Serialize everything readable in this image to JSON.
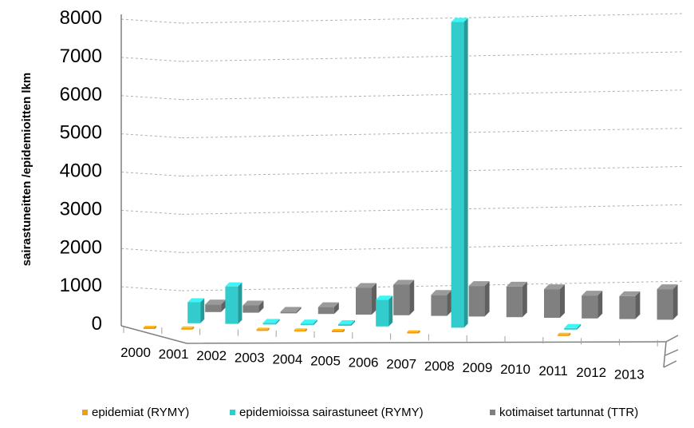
{
  "chart_data": {
    "type": "bar",
    "subtype": "3d-clustered-bar",
    "categories": [
      "2000",
      "2001",
      "2002",
      "2003",
      "2004",
      "2005",
      "2006",
      "2007",
      "2008",
      "2009",
      "2010",
      "2011",
      "2012",
      "2013"
    ],
    "series": [
      {
        "name": "epidemiat (RYMY)",
        "color": "#f39c12",
        "values": [
          10,
          12,
          null,
          8,
          9,
          11,
          null,
          10,
          null,
          null,
          null,
          9,
          null,
          null
        ]
      },
      {
        "name": "epidemioissa sairastuneet (RYMY)",
        "color": "#33cccc",
        "values": [
          null,
          550,
          980,
          30,
          25,
          30,
          700,
          null,
          8000,
          null,
          null,
          25,
          null,
          null
        ]
      },
      {
        "name": "kotimaiset tartunnat (TTR)",
        "color": "#808080",
        "values": [
          null,
          200,
          190,
          40,
          180,
          700,
          800,
          550,
          800,
          800,
          750,
          600,
          600,
          800
        ]
      }
    ],
    "ylabel": "sairastuneitten /epidemioitten  lkm",
    "xlabel": "",
    "ylim": [
      0,
      8000
    ],
    "yticks": [
      "0",
      "1000",
      "2000",
      "3000",
      "4000",
      "5000",
      "6000",
      "7000",
      "8000"
    ],
    "grid": true,
    "legend_position": "bottom"
  }
}
